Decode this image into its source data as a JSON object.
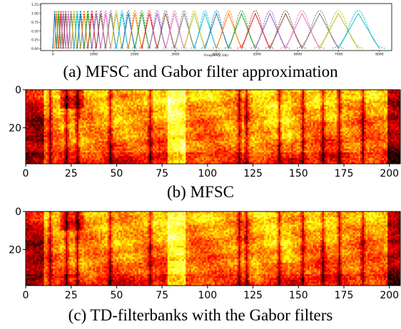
{
  "captions": {
    "a": "(a) MFSC and Gabor filter approximation",
    "b": "(b) MFSC",
    "c": "(c) TD-filterbanks with the Gabor filters"
  },
  "chart_data": [
    {
      "type": "line",
      "id": "filters",
      "xlabel": "Frequency (Hz)",
      "ylabel": "",
      "xlim": [
        -300,
        8300
      ],
      "ylim": [
        -0.05,
        1.28
      ],
      "xticks": [
        "0",
        "1000",
        "2000",
        "3000",
        "4000",
        "5000",
        "6000",
        "7000",
        "8000"
      ],
      "yticks": [
        "0.00",
        "0.25",
        "0.50",
        "0.75",
        "1.00",
        "1.25"
      ],
      "n_filters": 40,
      "mel_range_hz": [
        0,
        8000
      ],
      "series": [
        {
          "style": "solid",
          "peak": 1.0
        },
        {
          "style": "dashed",
          "peak": 1.08
        }
      ],
      "palette": [
        "#1f77b4",
        "#ff7f0e",
        "#2ca02c",
        "#d62728",
        "#9467bd",
        "#8c564b",
        "#e377c2",
        "#7f7f7f",
        "#bcbd22",
        "#17becf"
      ]
    },
    {
      "type": "heatmap",
      "id": "mfsc",
      "colormap": "hot",
      "xlim": [
        0,
        206
      ],
      "ylim": [
        39,
        0
      ],
      "xticks": [
        "0",
        "25",
        "50",
        "75",
        "100",
        "125",
        "150",
        "175",
        "200"
      ],
      "yticks": [
        "0",
        "20"
      ]
    },
    {
      "type": "heatmap",
      "id": "td-filterbanks",
      "colormap": "hot",
      "xlim": [
        0,
        206
      ],
      "ylim": [
        39,
        0
      ],
      "xticks": [
        "0",
        "25",
        "50",
        "75",
        "100",
        "125",
        "150",
        "175",
        "200"
      ],
      "yticks": [
        "0",
        "20"
      ]
    }
  ]
}
